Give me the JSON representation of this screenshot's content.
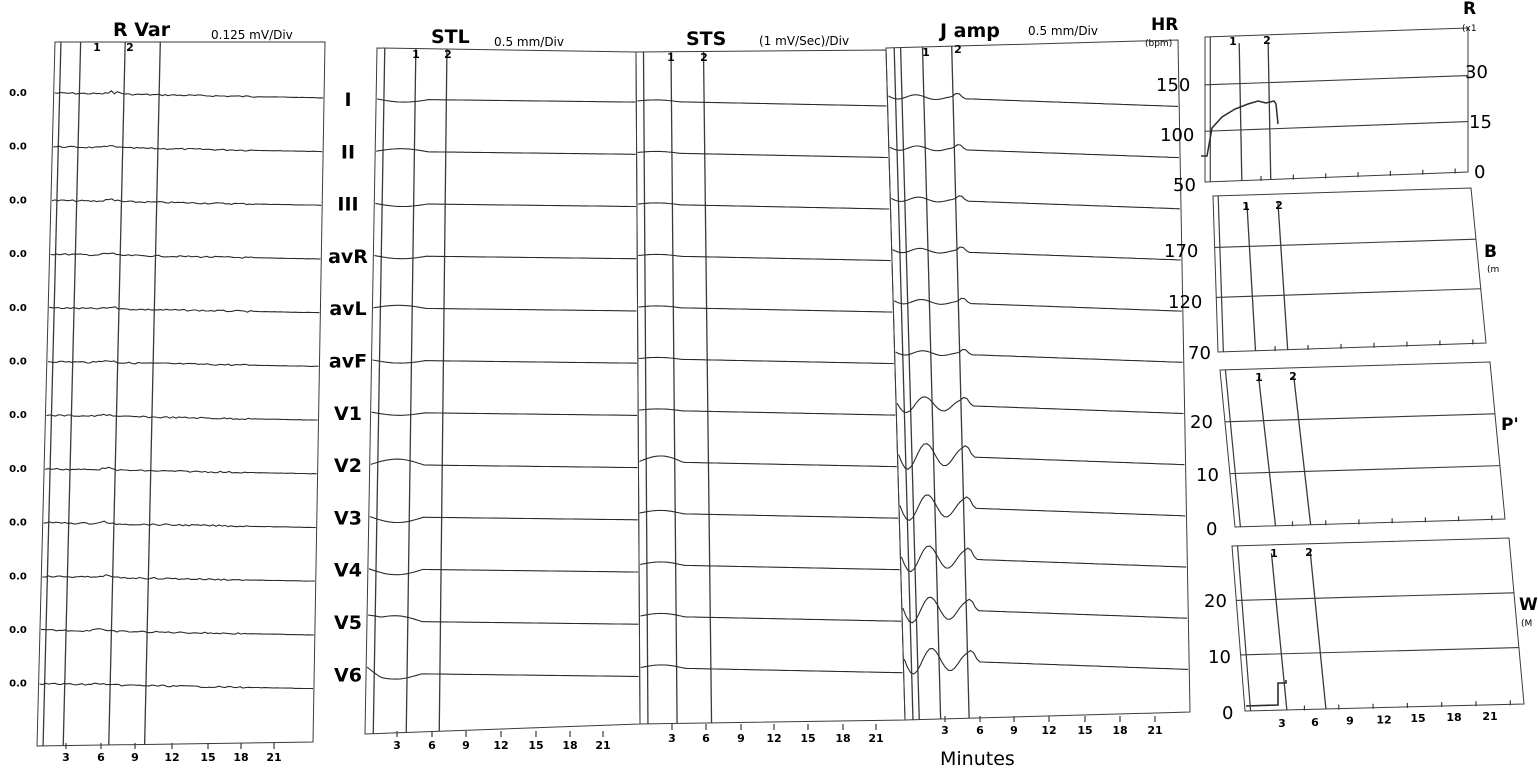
{
  "chart_data": [
    {
      "type": "line",
      "title": "R Var",
      "units": "0.125 mV/Div",
      "baseline_labels": [
        "0.0",
        "0.0",
        "0.0",
        "0.0",
        "0.0",
        "0.0",
        "0.0",
        "0.0",
        "0.0",
        "0.0",
        "0.0",
        "0.0"
      ],
      "x_ticks": [
        "3",
        "6",
        "9",
        "12",
        "15",
        "18",
        "21"
      ],
      "markers": [
        "1",
        "2"
      ]
    },
    {
      "type": "line",
      "title": "STL",
      "units": "0.5 mm/Div",
      "x_ticks": [
        "3",
        "6",
        "9",
        "12",
        "15",
        "18",
        "21"
      ],
      "markers": [
        "1",
        "2"
      ]
    },
    {
      "type": "line",
      "title": "STS",
      "units": "(1 mV/Sec)/Div",
      "x_ticks": [
        "3",
        "6",
        "9",
        "12",
        "15",
        "18",
        "21"
      ],
      "markers": [
        "1",
        "2"
      ]
    },
    {
      "type": "line",
      "title": "J amp",
      "units": "0.5 mm/Div",
      "x_ticks": [
        "3",
        "6",
        "9",
        "12",
        "15",
        "18",
        "21"
      ],
      "markers": [
        "1",
        "2"
      ]
    },
    {
      "type": "line",
      "title": "HR",
      "units": "(bpm)",
      "y_ticks": [
        "150",
        "100",
        "50"
      ],
      "right_ticks": [
        "30",
        "15",
        "0"
      ],
      "markers": [
        "1",
        "2"
      ]
    },
    {
      "type": "line",
      "y_ticks": [
        "170",
        "120",
        "70"
      ],
      "markers": [
        "1",
        "2"
      ]
    },
    {
      "type": "line",
      "y_ticks": [
        "20",
        "10",
        "0"
      ],
      "markers": [
        "1",
        "2"
      ]
    },
    {
      "type": "line",
      "y_ticks": [
        "20",
        "10",
        "0"
      ],
      "x_ticks": [
        "3",
        "6",
        "9",
        "12",
        "15",
        "18",
        "21"
      ],
      "markers": [
        "1",
        "2"
      ]
    }
  ],
  "leads": [
    "I",
    "II",
    "III",
    "avR",
    "avL",
    "avF",
    "V1",
    "V2",
    "V3",
    "V4",
    "V5",
    "V6"
  ],
  "side_titles": {
    "r": "R",
    "r_units": "(x1",
    "b": "B",
    "b_units": "(m",
    "p": "P'",
    "w": "W",
    "w_units": "(M"
  },
  "x_axis_title": "Minutes",
  "colors": {
    "trace": "#2b2b2b",
    "grid": "#3a3a3a",
    "background": "#ffffff"
  }
}
